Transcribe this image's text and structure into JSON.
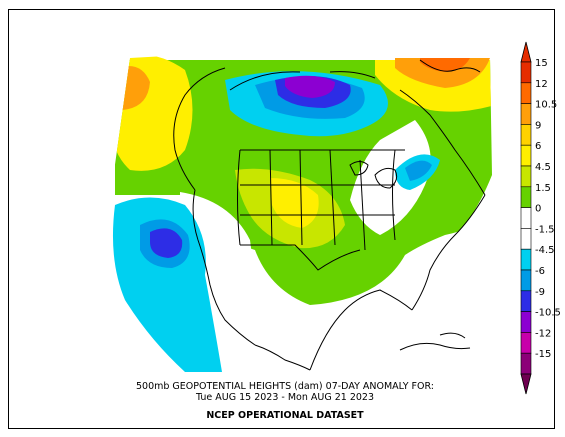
{
  "caption": {
    "line1": "500mb GEOPOTENTIAL HEIGHTS (dam)   07-DAY ANOMALY FOR:",
    "line2": "Tue AUG 15 2023 - Mon AUG 21 2023",
    "line3": "NCEP OPERATIONAL DATASET"
  },
  "legend": {
    "bins": [
      {
        "color": "#e52d00",
        "label": "15"
      },
      {
        "color": "#ff6a00",
        "label": "12"
      },
      {
        "color": "#ff9f0a",
        "label": "10.5"
      },
      {
        "color": "#ffd200",
        "label": "9"
      },
      {
        "color": "#ffef00",
        "label": "6"
      },
      {
        "color": "#c8e600",
        "label": "4.5"
      },
      {
        "color": "#66d200",
        "label": "1.5"
      },
      {
        "color": "#ffffff",
        "label": "0"
      },
      {
        "color": "#ffffff",
        "label": "-1.5"
      },
      {
        "color": "#00d0f0",
        "label": "-4.5"
      },
      {
        "color": "#009be6",
        "label": "-6"
      },
      {
        "color": "#2d2de6",
        "label": "-9"
      },
      {
        "color": "#8c00d2",
        "label": "-10.5"
      },
      {
        "color": "#c800aa",
        "label": "-12"
      },
      {
        "color": "#8c0078",
        "label": "-15"
      }
    ],
    "top_arrow_color": "#e52d00",
    "bottom_arrow_color": "#6e0050"
  }
}
